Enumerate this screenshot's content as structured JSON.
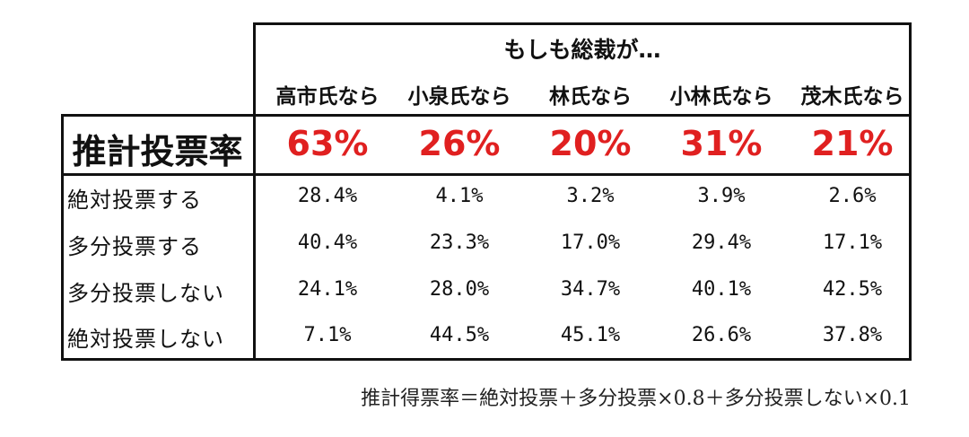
{
  "chart_data": {
    "type": "table",
    "title": "もしも総裁が…",
    "headers": [
      "高市氏なら",
      "小泉氏なら",
      "林氏なら",
      "小林氏なら",
      "茂木氏なら"
    ],
    "estimate_label": "推計投票率",
    "estimate_values": [
      "63%",
      "26%",
      "20%",
      "31%",
      "21%"
    ],
    "rows": [
      {
        "label": "絶対投票する",
        "values": [
          "28.4%",
          "4.1%",
          "3.2%",
          "3.9%",
          "2.6%"
        ]
      },
      {
        "label": "多分投票する",
        "values": [
          "40.4%",
          "23.3%",
          "17.0%",
          "29.4%",
          "17.1%"
        ]
      },
      {
        "label": "多分投票しない",
        "values": [
          "24.1%",
          "28.0%",
          "34.7%",
          "40.1%",
          "42.5%"
        ]
      },
      {
        "label": "絶対投票しない",
        "values": [
          "7.1%",
          "44.5%",
          "45.1%",
          "26.6%",
          "37.8%"
        ]
      }
    ],
    "footnote": "推計得票率＝絶対投票＋多分投票×0.8＋多分投票しない×0.1"
  },
  "colors": {
    "estimate": "#e02020",
    "border": "#111111"
  }
}
